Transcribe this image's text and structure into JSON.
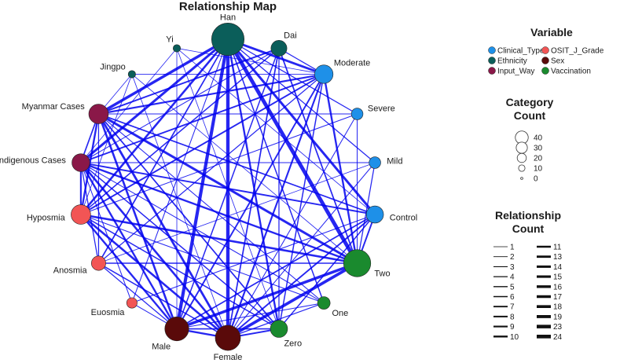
{
  "chart_data": {
    "type": "network",
    "title": "Relationship Map",
    "edge_color": "#0000ee",
    "variables": [
      {
        "name": "Clinical_Type",
        "color": "#1e90e8"
      },
      {
        "name": "OSIT_J_Grade",
        "color": "#f25555"
      },
      {
        "name": "Ethnicity",
        "color": "#0b5e5a"
      },
      {
        "name": "Sex",
        "color": "#5a0a0a"
      },
      {
        "name": "Input_Way",
        "color": "#8a1848"
      },
      {
        "name": "Vaccination",
        "color": "#1a8a2e"
      }
    ],
    "nodes": [
      {
        "label": "Han",
        "variable": "Ethnicity",
        "count": 48
      },
      {
        "label": "Dai",
        "variable": "Ethnicity",
        "count": 9
      },
      {
        "label": "Moderate",
        "variable": "Clinical_Type",
        "count": 13
      },
      {
        "label": "Severe",
        "variable": "Clinical_Type",
        "count": 4
      },
      {
        "label": "Mild",
        "variable": "Clinical_Type",
        "count": 4
      },
      {
        "label": "Control",
        "variable": "Clinical_Type",
        "count": 11
      },
      {
        "label": "Two",
        "variable": "Vaccination",
        "count": 32
      },
      {
        "label": "One",
        "variable": "Vaccination",
        "count": 5
      },
      {
        "label": "Zero",
        "variable": "Vaccination",
        "count": 11
      },
      {
        "label": "Female",
        "variable": "Sex",
        "count": 27
      },
      {
        "label": "Male",
        "variable": "Sex",
        "count": 24
      },
      {
        "label": "Euosmia",
        "variable": "OSIT_J_Grade",
        "count": 3
      },
      {
        "label": "Anosmia",
        "variable": "OSIT_J_Grade",
        "count": 7
      },
      {
        "label": "Hyposmia",
        "variable": "OSIT_J_Grade",
        "count": 15
      },
      {
        "label": "Indigenous Cases",
        "variable": "Input_Way",
        "count": 12
      },
      {
        "label": "Myanmar Cases",
        "variable": "Input_Way",
        "count": 15
      },
      {
        "label": "Jingpo",
        "variable": "Ethnicity",
        "count": 1
      },
      {
        "label": "Yi",
        "variable": "Ethnicity",
        "count": 1
      }
    ],
    "edges": [
      [
        "Han",
        "Moderate",
        10
      ],
      [
        "Han",
        "Control",
        11
      ],
      [
        "Han",
        "Two",
        19
      ],
      [
        "Han",
        "Zero",
        8
      ],
      [
        "Han",
        "Female",
        17
      ],
      [
        "Han",
        "Male",
        16
      ],
      [
        "Han",
        "Hyposmia",
        9
      ],
      [
        "Han",
        "Indigenous Cases",
        11
      ],
      [
        "Han",
        "Myanmar Cases",
        13
      ],
      [
        "Han",
        "One",
        4
      ],
      [
        "Han",
        "Severe",
        3
      ],
      [
        "Han",
        "Mild",
        3
      ],
      [
        "Han",
        "Anosmia",
        5
      ],
      [
        "Han",
        "Euosmia",
        2
      ],
      [
        "Dai",
        "Moderate",
        3
      ],
      [
        "Dai",
        "Two",
        5
      ],
      [
        "Dai",
        "Female",
        5
      ],
      [
        "Dai",
        "Male",
        4
      ],
      [
        "Dai",
        "Myanmar Cases",
        6
      ],
      [
        "Dai",
        "Hyposmia",
        4
      ],
      [
        "Dai",
        "Zero",
        3
      ],
      [
        "Moderate",
        "Two",
        8
      ],
      [
        "Moderate",
        "Female",
        7
      ],
      [
        "Moderate",
        "Male",
        6
      ],
      [
        "Moderate",
        "Hyposmia",
        6
      ],
      [
        "Moderate",
        "Myanmar Cases",
        7
      ],
      [
        "Moderate",
        "Indigenous Cases",
        6
      ],
      [
        "Moderate",
        "Zero",
        4
      ],
      [
        "Moderate",
        "Anosmia",
        3
      ],
      [
        "Control",
        "Two",
        6
      ],
      [
        "Control",
        "Female",
        6
      ],
      [
        "Control",
        "Male",
        5
      ],
      [
        "Control",
        "Indigenous Cases",
        6
      ],
      [
        "Control",
        "Myanmar Cases",
        5
      ],
      [
        "Control",
        "Euosmia",
        2
      ],
      [
        "Control",
        "Zero",
        4
      ],
      [
        "Two",
        "Female",
        14
      ],
      [
        "Two",
        "Male",
        13
      ],
      [
        "Two",
        "Hyposmia",
        9
      ],
      [
        "Two",
        "Indigenous Cases",
        8
      ],
      [
        "Two",
        "Myanmar Cases",
        11
      ],
      [
        "Two",
        "Anosmia",
        4
      ],
      [
        "Two",
        "Severe",
        2
      ],
      [
        "Two",
        "Mild",
        3
      ],
      [
        "Zero",
        "Female",
        6
      ],
      [
        "Zero",
        "Male",
        5
      ],
      [
        "Zero",
        "Hyposmia",
        4
      ],
      [
        "Zero",
        "Myanmar Cases",
        5
      ],
      [
        "Zero",
        "Indigenous Cases",
        4
      ],
      [
        "One",
        "Female",
        3
      ],
      [
        "One",
        "Male",
        2
      ],
      [
        "One",
        "Indigenous Cases",
        2
      ],
      [
        "One",
        "Myanmar Cases",
        2
      ],
      [
        "Female",
        "Male",
        8
      ],
      [
        "Female",
        "Hyposmia",
        9
      ],
      [
        "Female",
        "Anosmia",
        4
      ],
      [
        "Female",
        "Indigenous Cases",
        9
      ],
      [
        "Female",
        "Myanmar Cases",
        10
      ],
      [
        "Female",
        "Severe",
        2
      ],
      [
        "Female",
        "Mild",
        2
      ],
      [
        "Male",
        "Hyposmia",
        8
      ],
      [
        "Male",
        "Anosmia",
        3
      ],
      [
        "Male",
        "Indigenous Cases",
        8
      ],
      [
        "Male",
        "Myanmar Cases",
        9
      ],
      [
        "Male",
        "Euosmia",
        2
      ],
      [
        "Hyposmia",
        "Indigenous Cases",
        7
      ],
      [
        "Hyposmia",
        "Myanmar Cases",
        8
      ],
      [
        "Indigenous Cases",
        "Myanmar Cases",
        5
      ],
      [
        "Anosmia",
        "Myanmar Cases",
        3
      ],
      [
        "Anosmia",
        "Indigenous Cases",
        3
      ],
      [
        "Jingpo",
        "Myanmar Cases",
        1
      ],
      [
        "Jingpo",
        "Two",
        1
      ],
      [
        "Jingpo",
        "Moderate",
        1
      ],
      [
        "Jingpo",
        "Female",
        1
      ],
      [
        "Jingpo",
        "Hyposmia",
        1
      ],
      [
        "Yi",
        "Indigenous Cases",
        1
      ],
      [
        "Yi",
        "Control",
        1
      ],
      [
        "Yi",
        "Male",
        1
      ],
      [
        "Yi",
        "Zero",
        1
      ],
      [
        "Yi",
        "Moderate",
        1
      ],
      [
        "Severe",
        "Myanmar Cases",
        2
      ],
      [
        "Severe",
        "Hyposmia",
        2
      ],
      [
        "Mild",
        "Indigenous Cases",
        2
      ],
      [
        "Mild",
        "Anosmia",
        1
      ],
      [
        "Euosmia",
        "Indigenous Cases",
        2
      ],
      [
        "One",
        "Hyposmia",
        2
      ],
      [
        "Dai",
        "Indigenous Cases",
        2
      ]
    ],
    "legend": {
      "variable_title": "Variable",
      "category_title": [
        "Category",
        "Count"
      ],
      "category_sizes": [
        40,
        30,
        20,
        10,
        0
      ],
      "relationship_title": [
        "Relationship",
        "Count"
      ],
      "relationship_values": [
        1,
        2,
        3,
        4,
        5,
        6,
        7,
        8,
        9,
        10,
        11,
        13,
        14,
        15,
        16,
        17,
        18,
        19,
        23,
        24
      ]
    }
  }
}
